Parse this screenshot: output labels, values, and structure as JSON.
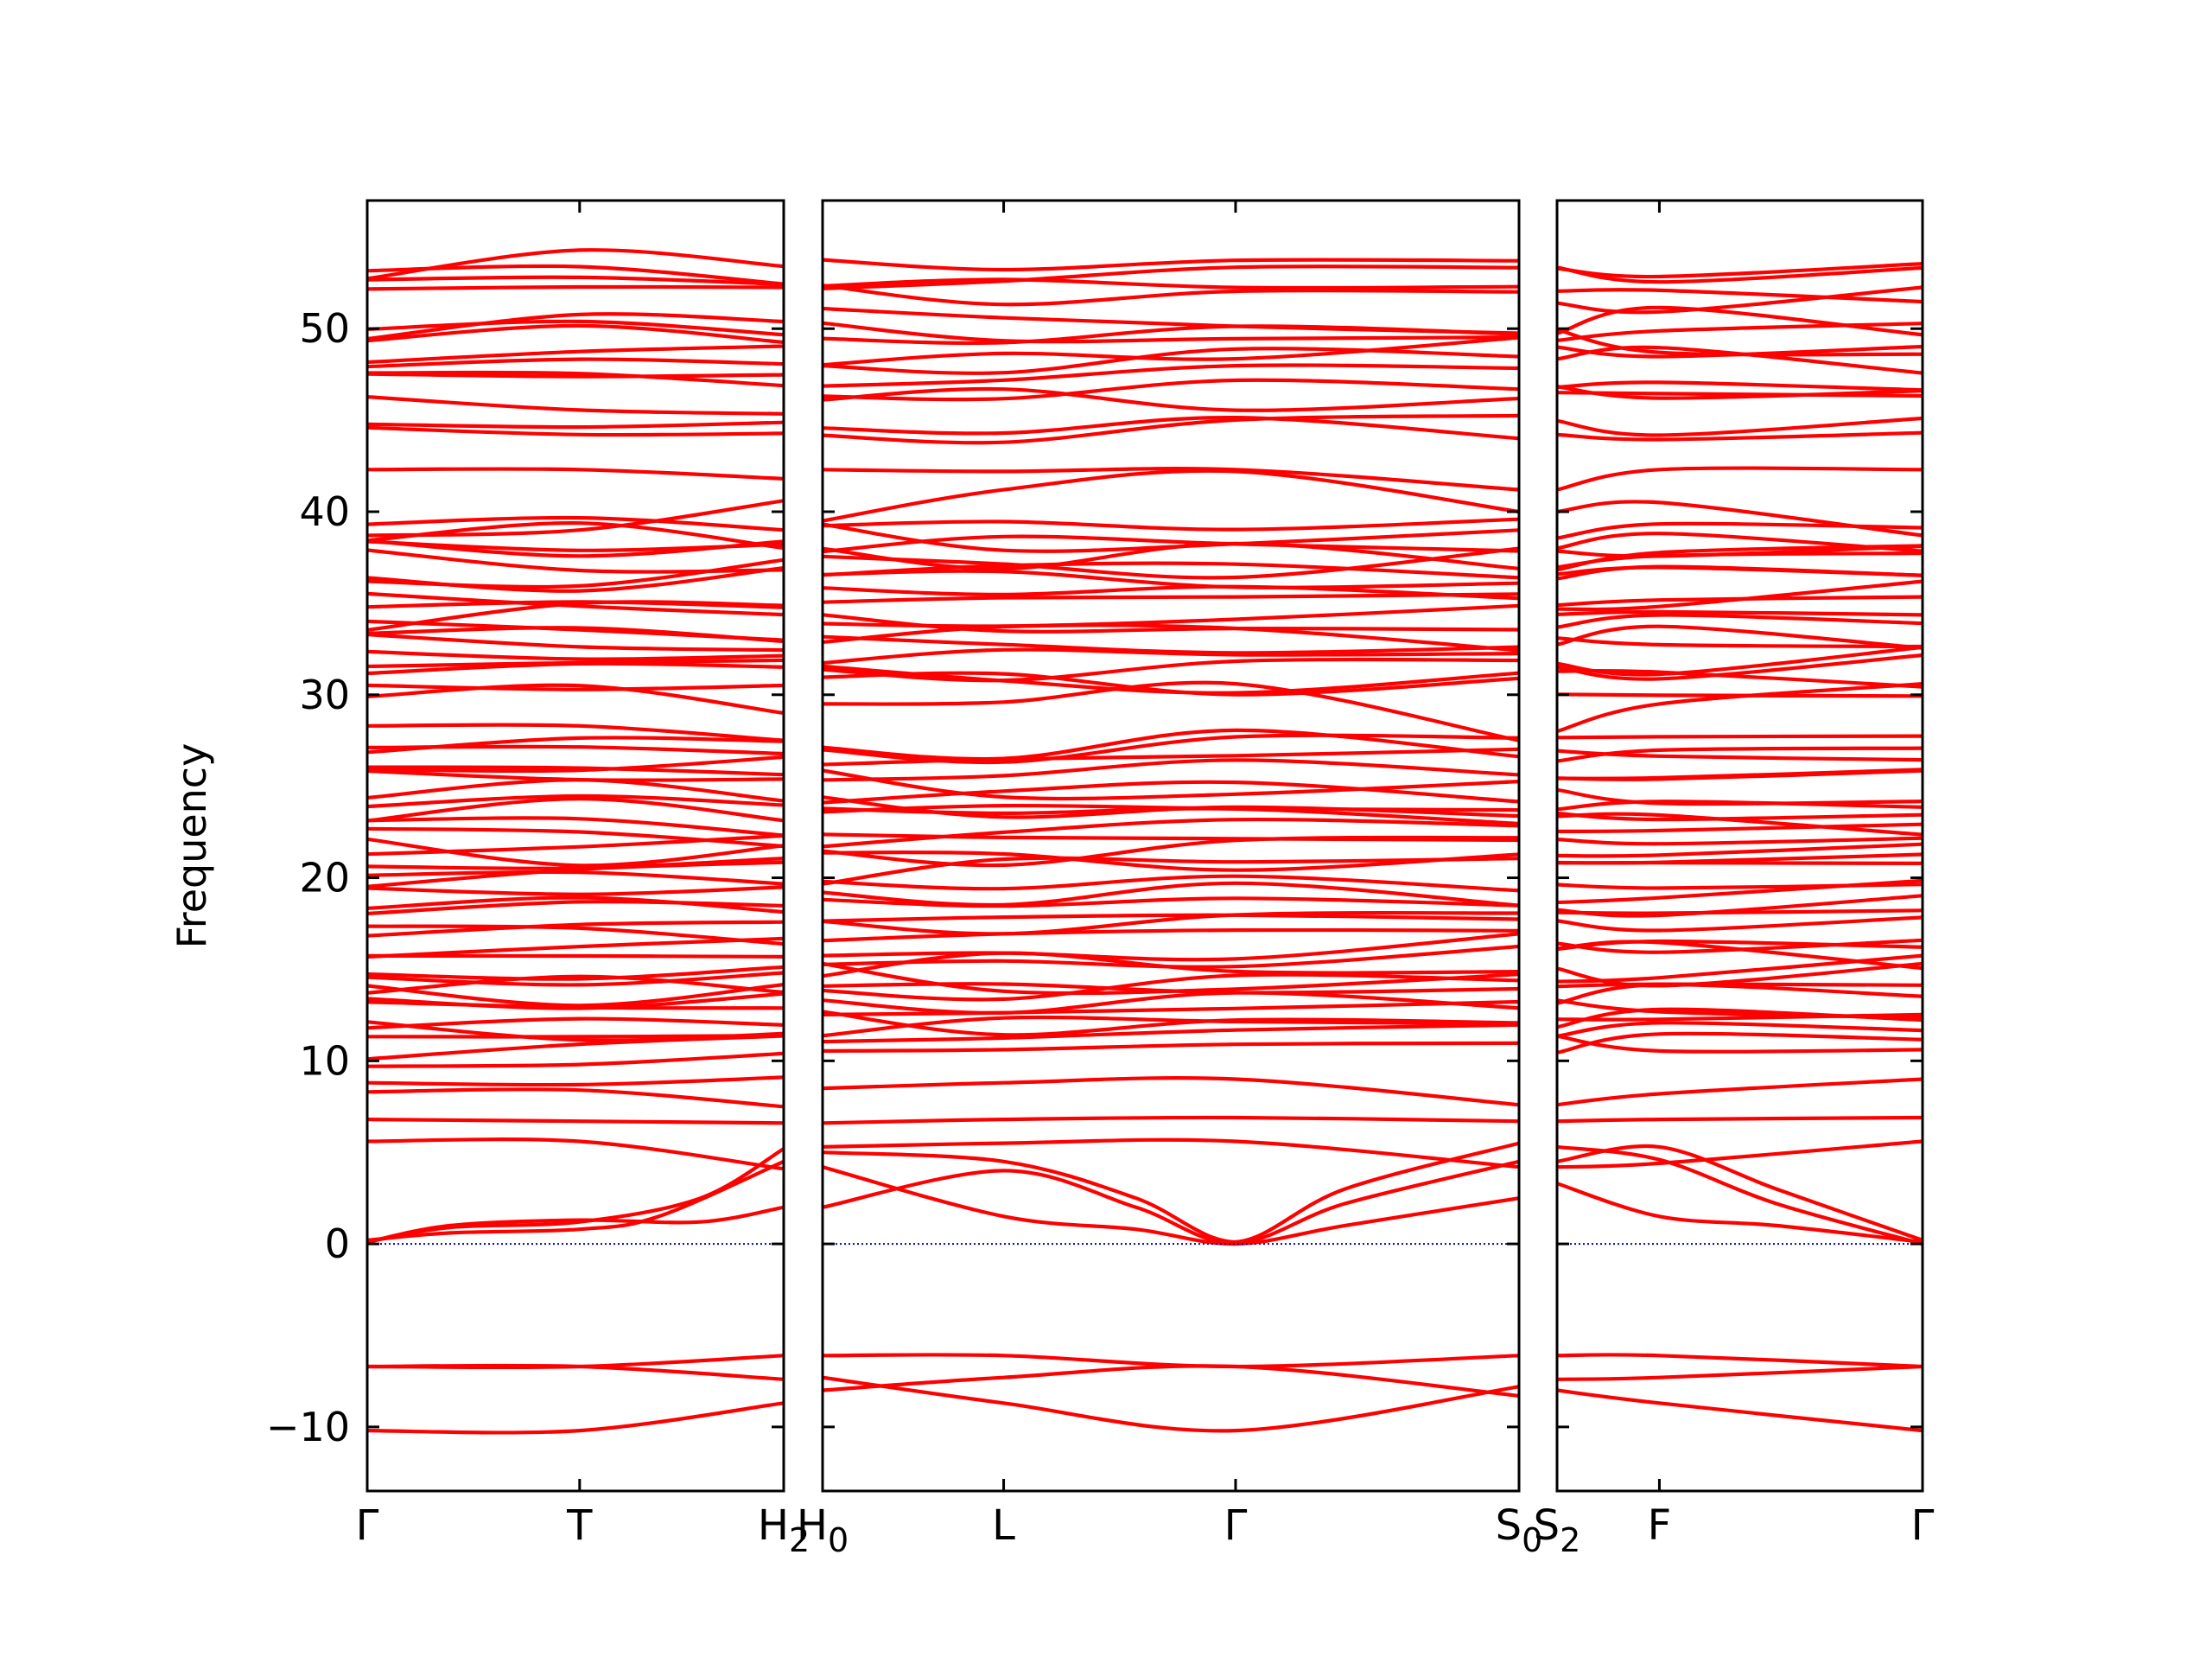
{
  "chart_data": {
    "type": "line",
    "title": "",
    "ylabel": "Frequency",
    "ylim": [
      -13.5,
      57
    ],
    "yticks": [
      -10,
      0,
      10,
      20,
      30,
      40,
      50
    ],
    "ytick_labels": [
      "−10",
      "0",
      "10",
      "20",
      "30",
      "40",
      "50"
    ],
    "grid": false,
    "colors": {
      "bands": "#ff0000",
      "zero_line": "#0000aa",
      "axes": "#000000"
    },
    "panels": [
      {
        "path_x_range": [
          0,
          1
        ],
        "ticks": [
          {
            "pos": 0.0,
            "label": "Γ"
          },
          {
            "pos": 0.51,
            "label": "T"
          },
          {
            "pos": 1.0,
            "label": "H",
            "sub": "2"
          }
        ],
        "acoustic_bands": [
          {
            "x": [
              0,
              0.2,
              0.51,
              0.7,
              1.0
            ],
            "y": [
              0.2,
              0.6,
              0.8,
              1.5,
              4.5
            ]
          },
          {
            "x": [
              0,
              0.2,
              0.51,
              0.8,
              1.0
            ],
            "y": [
              0.1,
              0.9,
              1.2,
              2.5,
              5.2
            ]
          },
          {
            "x": [
              0,
              0.2,
              0.51,
              0.8,
              1.0
            ],
            "y": [
              0.1,
              1.0,
              1.3,
              1.2,
              2.0
            ]
          }
        ],
        "bands": [
          {
            "x": [
              0,
              0.51,
              1.0
            ],
            "y": [
              -10.2,
              -10.2,
              -8.7
            ]
          },
          {
            "x": [
              0,
              0.51,
              1.0
            ],
            "y": [
              -6.7,
              -6.7,
              -7.4
            ]
          },
          {
            "x": [
              0,
              0.51,
              1.0
            ],
            "y": [
              -6.7,
              -6.7,
              -6.1
            ]
          },
          {
            "x": [
              0,
              0.51,
              1.0
            ],
            "y": [
              5.6,
              5.6,
              4.1
            ]
          },
          {
            "x": [
              0,
              0.51,
              1.0
            ],
            "y": [
              6.8,
              6.7,
              6.6
            ]
          },
          {
            "x": [
              0,
              0.51,
              1.0
            ],
            "y": [
              8.3,
              8.4,
              7.5
            ]
          },
          {
            "x": [
              0,
              0.51,
              1.0
            ],
            "y": [
              8.8,
              8.7,
              9.1
            ]
          },
          {
            "x": [
              0,
              0.51,
              1.0
            ],
            "y": [
              9.7,
              9.8,
              10.4
            ]
          },
          {
            "x": [
              0,
              0.51,
              1.0
            ],
            "y": [
              29.9,
              30.5,
              29.0
            ]
          },
          {
            "x": [
              0,
              0.51,
              1.0
            ],
            "y": [
              28.3,
              28.3,
              27.5
            ]
          },
          {
            "x": [
              0,
              0.51,
              1.0
            ],
            "y": [
              38.7,
              39.0,
              40.6
            ]
          },
          {
            "x": [
              0,
              0.51,
              1.0
            ],
            "y": [
              42.3,
              42.3,
              41.8
            ]
          }
        ]
      },
      {
        "path_x_range": [
          0,
          1
        ],
        "ticks": [
          {
            "pos": 0.0,
            "label": "H",
            "sub": "0"
          },
          {
            "pos": 0.26,
            "label": "L"
          },
          {
            "pos": 0.593,
            "label": "Γ"
          },
          {
            "pos": 1.0,
            "label": "S",
            "sub": "0"
          }
        ],
        "acoustic_bands": [
          {
            "x": [
              0,
              0.26,
              0.45,
              0.593,
              0.75,
              1.0
            ],
            "y": [
              2.0,
              4.0,
              2.0,
              0.1,
              3.0,
              5.5
            ]
          },
          {
            "x": [
              0,
              0.26,
              0.45,
              0.593,
              0.75,
              1.0
            ],
            "y": [
              5.0,
              4.5,
              2.5,
              0.1,
              2.2,
              4.5
            ]
          },
          {
            "x": [
              0,
              0.26,
              0.45,
              0.593,
              0.75,
              1.0
            ],
            "y": [
              4.2,
              1.5,
              0.8,
              0.0,
              1.0,
              2.5
            ]
          }
        ],
        "bands": [
          {
            "x": [
              0,
              0.26,
              0.593,
              1.0
            ],
            "y": [
              -7.3,
              -8.7,
              -10.2,
              -7.8
            ]
          },
          {
            "x": [
              0,
              0.26,
              0.593,
              1.0
            ],
            "y": [
              -8.0,
              -7.3,
              -6.7,
              -8.3
            ]
          },
          {
            "x": [
              0,
              0.26,
              0.593,
              1.0
            ],
            "y": [
              -6.1,
              -6.1,
              -6.7,
              -6.1
            ]
          },
          {
            "x": [
              0,
              0.26,
              0.593,
              1.0
            ],
            "y": [
              5.3,
              5.5,
              5.6,
              4.2
            ]
          },
          {
            "x": [
              0,
              0.26,
              0.593,
              1.0
            ],
            "y": [
              6.6,
              6.8,
              6.9,
              6.7
            ]
          },
          {
            "x": [
              0,
              0.26,
              0.593,
              1.0
            ],
            "y": [
              8.5,
              8.8,
              9.0,
              7.6
            ]
          },
          {
            "x": [
              0,
              0.26,
              0.593,
              1.0
            ],
            "y": [
              29.5,
              29.6,
              30.6,
              27.5
            ]
          },
          {
            "x": [
              0,
              0.26,
              0.593,
              1.0
            ],
            "y": [
              39.5,
              41.2,
              42.2,
              40.0
            ]
          },
          {
            "x": [
              0,
              0.26,
              0.593,
              1.0
            ],
            "y": [
              42.3,
              42.2,
              42.3,
              41.2
            ]
          }
        ]
      },
      {
        "path_x_range": [
          0,
          1
        ],
        "ticks": [
          {
            "pos": 0.0,
            "label": "S",
            "sub": "2"
          },
          {
            "pos": 0.28,
            "label": "F"
          },
          {
            "pos": 1.0,
            "label": "Γ"
          }
        ],
        "acoustic_bands": [
          {
            "x": [
              0,
              0.28,
              0.6,
              1.0
            ],
            "y": [
              3.3,
              1.5,
              1.0,
              0.1
            ]
          },
          {
            "x": [
              0,
              0.28,
              0.6,
              1.0
            ],
            "y": [
              4.5,
              5.3,
              3.0,
              0.2
            ]
          },
          {
            "x": [
              0,
              0.28,
              0.6,
              1.0
            ],
            "y": [
              5.3,
              4.6,
              2.2,
              0.0
            ]
          }
        ],
        "bands": [
          {
            "x": [
              0,
              0.28,
              1.0
            ],
            "y": [
              -8.0,
              -8.7,
              -10.2
            ]
          },
          {
            "x": [
              0,
              0.28,
              1.0
            ],
            "y": [
              -6.1,
              -6.1,
              -6.7
            ]
          },
          {
            "x": [
              0,
              0.28,
              1.0
            ],
            "y": [
              -7.4,
              -7.3,
              -6.7
            ]
          },
          {
            "x": [
              0,
              0.28,
              1.0
            ],
            "y": [
              4.2,
              4.4,
              5.6
            ]
          },
          {
            "x": [
              0,
              0.28,
              1.0
            ],
            "y": [
              6.7,
              6.8,
              6.9
            ]
          },
          {
            "x": [
              0,
              0.28,
              1.0
            ],
            "y": [
              7.6,
              8.2,
              9.0
            ]
          },
          {
            "x": [
              0,
              0.28,
              1.0
            ],
            "y": [
              28.0,
              29.5,
              30.6
            ]
          },
          {
            "x": [
              0,
              0.28,
              1.0
            ],
            "y": [
              40.0,
              40.5,
              38.7
            ]
          },
          {
            "x": [
              0,
              0.28,
              1.0
            ],
            "y": [
              41.2,
              42.3,
              42.3
            ]
          }
        ]
      }
    ],
    "flat_band_levels": [
      10.9,
      11.3,
      11.8,
      12.1,
      12.6,
      13.0,
      13.4,
      13.9,
      14.6,
      15.1,
      15.7,
      16.2,
      16.8,
      17.4,
      17.9,
      18.6,
      19.2,
      19.7,
      20.3,
      20.8,
      21.4,
      21.9,
      22.5,
      23.0,
      23.6,
      24.1,
      24.7,
      25.2,
      25.8,
      26.3,
      26.9,
      27.3,
      30.4,
      30.9,
      31.4,
      31.9,
      32.5,
      33.1,
      33.6,
      34.3,
      34.9,
      35.4,
      36.2,
      36.7,
      37.2,
      37.6,
      38.1,
      38.6,
      39.3,
      44.5,
      44.8,
      46.1,
      46.8,
      47.4,
      48.2,
      48.8,
      49.4,
      50.0,
      50.4,
      51.6,
      52.1,
      52.8,
      53.5
    ]
  }
}
